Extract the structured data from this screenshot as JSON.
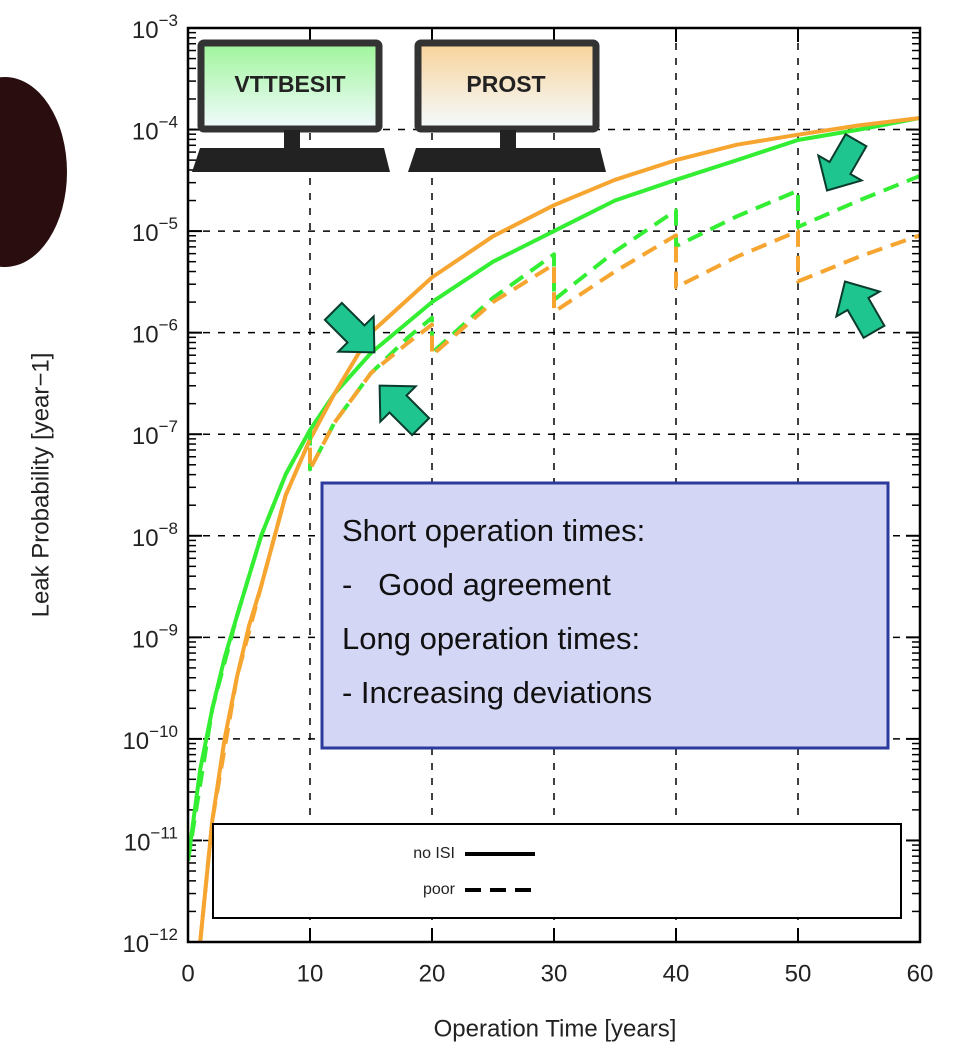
{
  "chart_data": {
    "type": "line",
    "xlabel": "Operation Time [years]",
    "ylabel": "Leak Probability [year−1]",
    "xlim": [
      0,
      60
    ],
    "xticks": [
      0,
      10,
      20,
      30,
      40,
      50,
      60
    ],
    "ylim": [
      1e-12,
      0.001
    ],
    "ylog": true,
    "yticks": [
      {
        "value": 1e-12,
        "label": "10−12"
      },
      {
        "value": 1e-11,
        "label": "10−11"
      },
      {
        "value": 1e-10,
        "label": "10−10"
      },
      {
        "value": 1e-09,
        "label": "10−9"
      },
      {
        "value": 1e-08,
        "label": "10−8"
      },
      {
        "value": 1e-07,
        "label": "10−7"
      },
      {
        "value": 1e-06,
        "label": "10−6"
      },
      {
        "value": 1e-05,
        "label": "10−5"
      },
      {
        "value": 0.0001,
        "label": "10−4"
      },
      {
        "value": 0.001,
        "label": "10−3"
      }
    ],
    "grid": true,
    "codes": [
      {
        "name": "VTTBESIT",
        "color": "#33ee33"
      },
      {
        "name": "PROST",
        "color": "#f7a531"
      }
    ],
    "legend": [
      {
        "name": "no ISI",
        "dash": "solid"
      },
      {
        "name": "poor",
        "dash": "dashed"
      }
    ],
    "series": [
      {
        "color": "#33ee33",
        "dash": "solid",
        "x": [
          0,
          1,
          2,
          3,
          4,
          5,
          6,
          8,
          10,
          12,
          15,
          20,
          25,
          30,
          35,
          40,
          45,
          50,
          55,
          60
        ],
        "values": [
          6.3e-12,
          5e-11,
          2e-10,
          6.3e-10,
          1.6e-09,
          4e-09,
          1e-08,
          4e-08,
          1.1e-07,
          2.5e-07,
          6.3e-07,
          2e-06,
          5e-06,
          1e-05,
          2e-05,
          3.2e-05,
          5e-05,
          7.9e-05,
          0.0001,
          0.00013
        ]
      },
      {
        "color": "#f7a531",
        "dash": "solid",
        "x": [
          1,
          2,
          3,
          4,
          5,
          6,
          8,
          10,
          12,
          15,
          20,
          25,
          30,
          35,
          40,
          45,
          50,
          55,
          60
        ],
        "values": [
          1e-12,
          1.6e-11,
          1e-10,
          4e-10,
          1.3e-09,
          3.2e-09,
          2.5e-08,
          8.9e-08,
          2.5e-07,
          1e-06,
          3.5e-06,
          8.9e-06,
          1.8e-05,
          3.2e-05,
          5e-05,
          7.1e-05,
          8.9e-05,
          0.00011,
          0.00013
        ]
      },
      {
        "color": "#33ee33",
        "dash": "dashed",
        "x": [
          0,
          2,
          4,
          6,
          8,
          10,
          10,
          12,
          15,
          18,
          20,
          20,
          25,
          30,
          30,
          35,
          40,
          40,
          45,
          50,
          50,
          55,
          60
        ],
        "values": [
          6.3e-12,
          2e-10,
          1.6e-09,
          1e-08,
          4e-08,
          1.1e-07,
          4.5e-08,
          1.3e-07,
          4e-07,
          8.9e-07,
          1.4e-06,
          6.3e-07,
          2.2e-06,
          5.9e-06,
          2.1e-06,
          6.3e-06,
          1.6e-05,
          7.1e-06,
          1.4e-05,
          2.5e-05,
          1.1e-05,
          2e-05,
          3.5e-05
        ]
      },
      {
        "color": "#f7a531",
        "dash": "dashed",
        "x": [
          1,
          2,
          4,
          6,
          8,
          10,
          10,
          12,
          15,
          18,
          20,
          20,
          25,
          30,
          30,
          35,
          40,
          40,
          45,
          50,
          50,
          55,
          60
        ],
        "values": [
          1e-12,
          1.6e-11,
          4e-10,
          3.2e-09,
          2.5e-08,
          8.9e-08,
          4.5e-08,
          1.3e-07,
          4e-07,
          7.9e-07,
          1.2e-06,
          6e-07,
          2e-06,
          4.7e-06,
          1.6e-06,
          4e-06,
          9.1e-06,
          2.8e-06,
          5.6e-06,
          1e-05,
          3.2e-06,
          5.6e-06,
          9.1e-06
        ]
      }
    ],
    "annotation": [
      "Short operation times:",
      "-   Good agreement",
      "Long operation times:",
      "- Increasing deviations"
    ]
  }
}
